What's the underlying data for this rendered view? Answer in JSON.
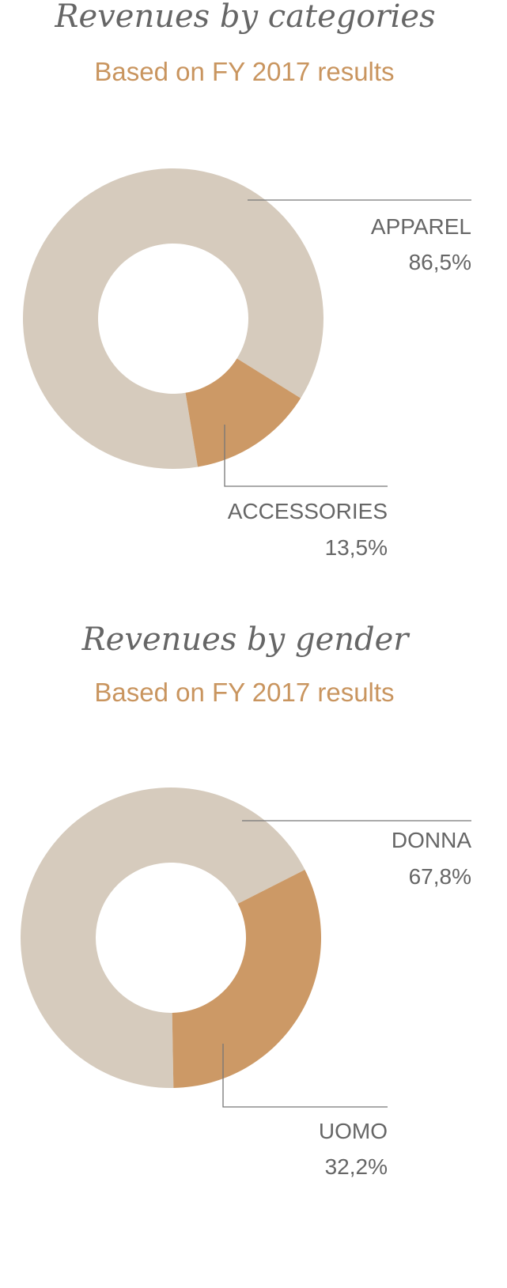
{
  "chart_data": [
    {
      "type": "donut",
      "title": "Revenues by categories",
      "subtitle": "Based on FY 2017 results",
      "categories": [
        "APPAREL",
        "ACCESSORIES"
      ],
      "values": [
        86.5,
        13.5
      ],
      "value_labels": [
        "86,5%",
        "13,5%"
      ],
      "colors": [
        "#d6cbbd",
        "#cc9966"
      ]
    },
    {
      "type": "donut",
      "title": "Revenues by gender",
      "subtitle": "Based on FY 2017 results",
      "categories": [
        "DONNA",
        "UOMO"
      ],
      "values": [
        67.8,
        32.2
      ],
      "value_labels": [
        "67,8%",
        "32,2%"
      ],
      "colors": [
        "#d6cbbd",
        "#cc9966"
      ]
    }
  ]
}
